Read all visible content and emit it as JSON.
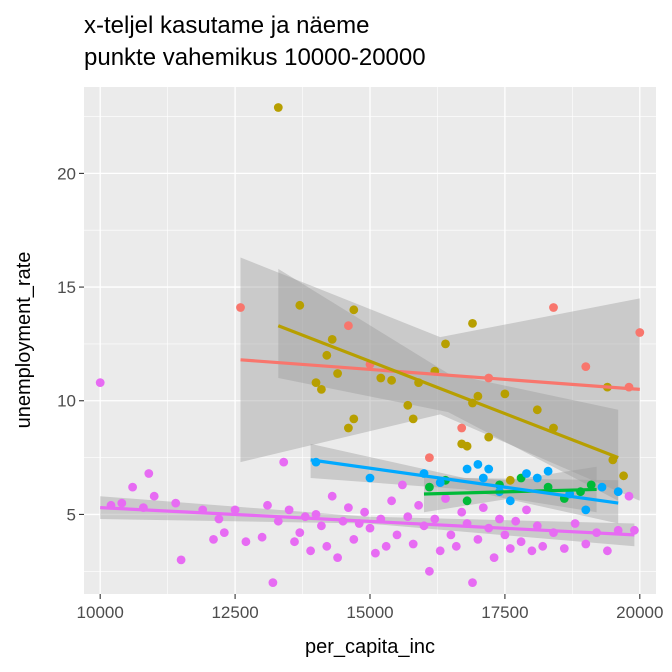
{
  "chart_data": {
    "type": "scatter",
    "title": [
      "x-teljel kasutame ja näeme",
      "punkte vahemikus 10000-20000"
    ],
    "xlabel": "per_capita_inc",
    "ylabel": "unemployment_rate",
    "xlim": [
      9700,
      20300
    ],
    "ylim": [
      1.5,
      23.8
    ],
    "x_ticks": [
      10000,
      12500,
      15000,
      17500,
      20000
    ],
    "x_tick_labels": [
      "10000",
      "12500",
      "15000",
      "17500",
      "20000"
    ],
    "y_ticks": [
      5,
      10,
      15,
      20
    ],
    "y_tick_labels": [
      "5",
      "10",
      "15",
      "20"
    ],
    "grid": true,
    "legend": "none",
    "series": [
      {
        "color": "#F8766D",
        "points": [
          [
            12600,
            14.1
          ],
          [
            14600,
            13.3
          ],
          [
            15000,
            11.6
          ],
          [
            16100,
            7.5
          ],
          [
            16700,
            8.8
          ],
          [
            17200,
            11.0
          ],
          [
            18400,
            14.1
          ],
          [
            19000,
            11.5
          ],
          [
            19800,
            10.6
          ],
          [
            20000,
            13.0
          ]
        ],
        "fit": {
          "x": [
            12600,
            20000
          ],
          "y": [
            11.8,
            10.5
          ]
        },
        "band": {
          "x": [
            12600,
            16300,
            20000
          ],
          "lo": [
            7.3,
            9.4,
            5.6
          ],
          "hi": [
            16.3,
            12.8,
            14.5
          ]
        }
      },
      {
        "color": "#B79F00",
        "points": [
          [
            13300,
            22.9
          ],
          [
            13700,
            14.2
          ],
          [
            14000,
            10.8
          ],
          [
            14100,
            10.5
          ],
          [
            14200,
            12.0
          ],
          [
            14300,
            12.7
          ],
          [
            14400,
            11.2
          ],
          [
            14600,
            8.8
          ],
          [
            14700,
            14.0
          ],
          [
            14700,
            9.2
          ],
          [
            15200,
            11.0
          ],
          [
            15400,
            10.9
          ],
          [
            15700,
            9.8
          ],
          [
            15800,
            9.2
          ],
          [
            15900,
            10.8
          ],
          [
            16200,
            11.3
          ],
          [
            16400,
            12.5
          ],
          [
            16700,
            8.1
          ],
          [
            16800,
            8.0
          ],
          [
            16900,
            13.4
          ],
          [
            16900,
            9.9
          ],
          [
            17000,
            10.2
          ],
          [
            17200,
            8.4
          ],
          [
            17500,
            10.3
          ],
          [
            17600,
            6.5
          ],
          [
            18100,
            9.6
          ],
          [
            18400,
            8.8
          ],
          [
            19400,
            10.6
          ],
          [
            19500,
            7.4
          ],
          [
            19700,
            6.7
          ]
        ],
        "fit": {
          "x": [
            13300,
            19600
          ],
          "y": [
            13.3,
            7.5
          ]
        },
        "band": {
          "x": [
            13300,
            16450,
            19600
          ],
          "lo": [
            11.0,
            9.5,
            5.6
          ],
          "hi": [
            15.8,
            11.2,
            9.6
          ]
        }
      },
      {
        "color": "#00BA38",
        "points": [
          [
            16100,
            6.2
          ],
          [
            16400,
            6.5
          ],
          [
            16800,
            5.6
          ],
          [
            17400,
            6.3
          ],
          [
            17800,
            6.6
          ],
          [
            18300,
            6.2
          ],
          [
            18600,
            5.7
          ],
          [
            18900,
            6.0
          ],
          [
            19100,
            6.3
          ]
        ],
        "fit": {
          "x": [
            16000,
            19200
          ],
          "y": [
            5.9,
            6.1
          ]
        },
        "band": {
          "x": [
            16000,
            17600,
            19200
          ],
          "lo": [
            5.1,
            5.7,
            5.1
          ],
          "hi": [
            6.7,
            6.5,
            7.1
          ]
        }
      },
      {
        "color": "#00A9FF",
        "points": [
          [
            14000,
            7.3
          ],
          [
            15000,
            6.6
          ],
          [
            16000,
            6.8
          ],
          [
            16300,
            6.4
          ],
          [
            16800,
            7.0
          ],
          [
            17000,
            7.2
          ],
          [
            17100,
            6.6
          ],
          [
            17200,
            7.0
          ],
          [
            17400,
            6.0
          ],
          [
            17600,
            5.6
          ],
          [
            17900,
            6.8
          ],
          [
            18100,
            6.6
          ],
          [
            18300,
            6.9
          ],
          [
            18700,
            5.9
          ],
          [
            19000,
            5.2
          ],
          [
            19300,
            6.2
          ],
          [
            19600,
            6.0
          ]
        ],
        "fit": {
          "x": [
            13900,
            19600
          ],
          "y": [
            7.4,
            5.5
          ]
        },
        "band": {
          "x": [
            13900,
            16750,
            19600
          ],
          "lo": [
            6.6,
            6.1,
            4.6
          ],
          "hi": [
            8.1,
            6.6,
            6.5
          ]
        }
      },
      {
        "color": "#E76BF3",
        "points": [
          [
            10000,
            10.8
          ],
          [
            10200,
            5.4
          ],
          [
            10400,
            5.5
          ],
          [
            10600,
            6.2
          ],
          [
            10800,
            5.3
          ],
          [
            10900,
            6.8
          ],
          [
            11000,
            5.8
          ],
          [
            11400,
            5.5
          ],
          [
            11500,
            3.0
          ],
          [
            11900,
            5.2
          ],
          [
            12100,
            3.9
          ],
          [
            12200,
            4.8
          ],
          [
            12300,
            4.2
          ],
          [
            12500,
            5.2
          ],
          [
            12700,
            3.8
          ],
          [
            13000,
            4.0
          ],
          [
            13100,
            5.4
          ],
          [
            13200,
            2.0
          ],
          [
            13300,
            4.7
          ],
          [
            13400,
            7.3
          ],
          [
            13500,
            5.2
          ],
          [
            13600,
            3.8
          ],
          [
            13700,
            4.2
          ],
          [
            13800,
            4.9
          ],
          [
            13900,
            3.4
          ],
          [
            14000,
            5.0
          ],
          [
            14100,
            4.5
          ],
          [
            14200,
            3.6
          ],
          [
            14300,
            5.8
          ],
          [
            14400,
            3.1
          ],
          [
            14500,
            4.7
          ],
          [
            14600,
            5.3
          ],
          [
            14700,
            3.9
          ],
          [
            14800,
            4.6
          ],
          [
            14900,
            5.1
          ],
          [
            15000,
            4.4
          ],
          [
            15100,
            3.3
          ],
          [
            15200,
            4.8
          ],
          [
            15300,
            3.6
          ],
          [
            15400,
            5.6
          ],
          [
            15500,
            4.1
          ],
          [
            15600,
            6.3
          ],
          [
            15700,
            4.9
          ],
          [
            15800,
            3.7
          ],
          [
            15900,
            5.4
          ],
          [
            16000,
            4.5
          ],
          [
            16100,
            2.5
          ],
          [
            16200,
            4.8
          ],
          [
            16300,
            3.4
          ],
          [
            16400,
            5.7
          ],
          [
            16500,
            4.1
          ],
          [
            16600,
            3.6
          ],
          [
            16700,
            5.1
          ],
          [
            16800,
            4.6
          ],
          [
            16900,
            2.0
          ],
          [
            17000,
            3.9
          ],
          [
            17100,
            5.3
          ],
          [
            17200,
            4.4
          ],
          [
            17300,
            3.1
          ],
          [
            17400,
            4.8
          ],
          [
            17500,
            4.1
          ],
          [
            17600,
            3.5
          ],
          [
            17700,
            4.7
          ],
          [
            17800,
            3.8
          ],
          [
            17900,
            5.2
          ],
          [
            18000,
            3.4
          ],
          [
            18100,
            4.5
          ],
          [
            18200,
            3.6
          ],
          [
            18400,
            4.2
          ],
          [
            18600,
            3.5
          ],
          [
            18800,
            4.6
          ],
          [
            19000,
            3.7
          ],
          [
            19200,
            4.2
          ],
          [
            19400,
            3.4
          ],
          [
            19600,
            4.3
          ],
          [
            19800,
            5.8
          ],
          [
            19900,
            4.3
          ]
        ],
        "fit": {
          "x": [
            10000,
            19900
          ],
          "y": [
            5.3,
            4.1
          ]
        },
        "band": {
          "x": [
            10000,
            14950,
            19900
          ],
          "lo": [
            4.8,
            4.6,
            3.6
          ],
          "hi": [
            5.8,
            4.9,
            4.6
          ]
        }
      }
    ]
  }
}
